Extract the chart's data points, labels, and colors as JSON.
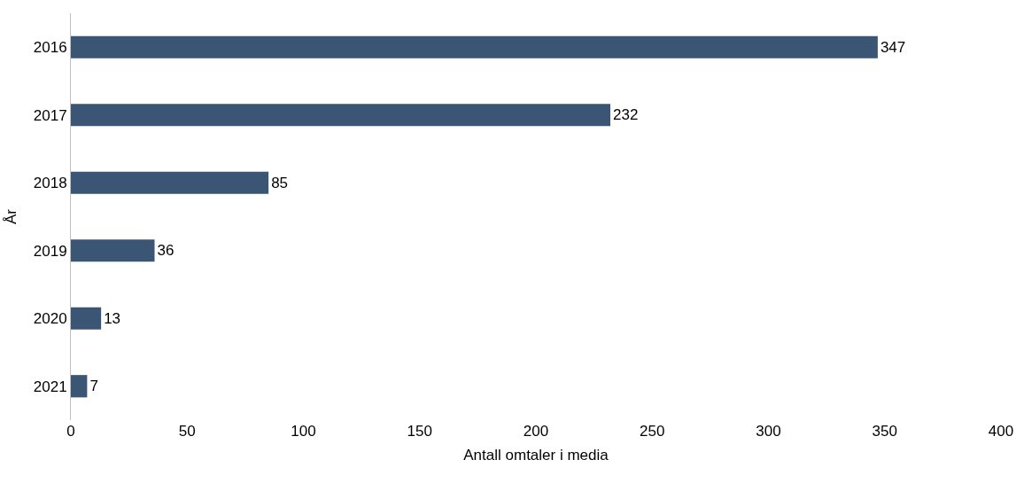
{
  "chart_data": {
    "type": "bar",
    "orientation": "horizontal",
    "xlabel": "Antall omtaler i media",
    "ylabel": "År",
    "categories": [
      "2016",
      "2017",
      "2018",
      "2019",
      "2020",
      "2021"
    ],
    "values": [
      347,
      232,
      85,
      36,
      13,
      7
    ],
    "color": "#3b5574",
    "xlim": [
      0,
      400
    ],
    "xticks": [
      0,
      50,
      100,
      150,
      200,
      250,
      300,
      350,
      400
    ],
    "grid": false,
    "data_labels": true
  }
}
